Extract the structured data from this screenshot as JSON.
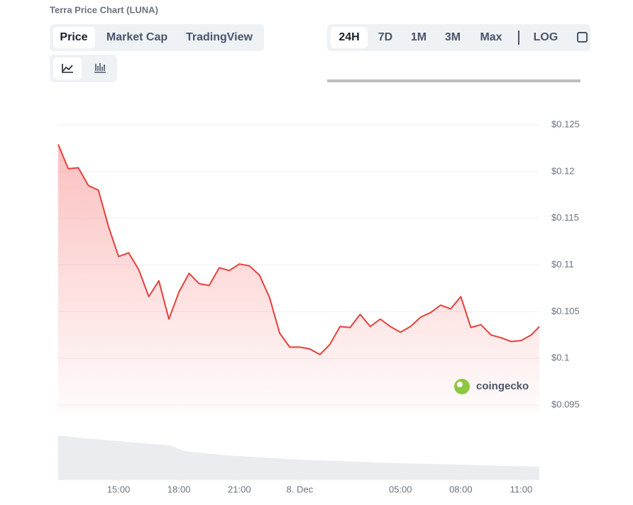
{
  "title": "Terra Price Chart (LUNA)",
  "tabs": [
    "Price",
    "Market Cap",
    "TradingView"
  ],
  "ranges": [
    "24H",
    "7D",
    "1M",
    "3M",
    "Max",
    "LOG"
  ],
  "watermark": "coingecko",
  "chart_data": {
    "type": "line",
    "color": "#e5403a",
    "grid": true,
    "x": [
      12.0,
      12.5,
      13.0,
      13.5,
      14.0,
      14.5,
      15.0,
      15.5,
      16.0,
      16.5,
      17.0,
      17.5,
      18.0,
      18.5,
      19.0,
      19.5,
      20.0,
      20.5,
      21.0,
      21.5,
      22.0,
      22.5,
      23.0,
      23.5,
      24.0,
      24.5,
      25.0,
      25.5,
      26.0,
      26.5,
      27.0,
      27.5,
      28.0,
      28.5,
      29.0,
      29.5,
      30.0,
      30.5,
      31.0,
      31.5,
      32.0,
      32.5,
      33.0,
      33.5,
      34.0,
      34.5,
      35.0,
      35.5,
      35.9
    ],
    "values": [
      0.1229,
      0.1203,
      0.1204,
      0.1185,
      0.118,
      0.1141,
      0.1109,
      0.1113,
      0.1095,
      0.1066,
      0.1083,
      0.1042,
      0.1071,
      0.1091,
      0.108,
      0.1078,
      0.1097,
      0.1094,
      0.1101,
      0.1099,
      0.1089,
      0.1065,
      0.1027,
      0.1012,
      0.1012,
      0.101,
      0.1004,
      0.1015,
      0.1034,
      0.1033,
      0.1047,
      0.1034,
      0.1042,
      0.1034,
      0.1028,
      0.1034,
      0.1044,
      0.1049,
      0.1057,
      0.1053,
      0.1066,
      0.1033,
      0.1036,
      0.1025,
      0.1022,
      0.1018,
      0.1019,
      0.1025,
      0.1034
    ],
    "xlim": [
      12.0,
      35.9
    ],
    "xticks": [
      {
        "value": 15,
        "label": "15:00"
      },
      {
        "value": 18,
        "label": "18:00"
      },
      {
        "value": 21,
        "label": "21:00"
      },
      {
        "value": 24,
        "label": "8. Dec"
      },
      {
        "value": 29,
        "label": "05:00"
      },
      {
        "value": 32,
        "label": "08:00"
      },
      {
        "value": 35,
        "label": "11:00"
      }
    ],
    "ylim": [
      0.094,
      0.126
    ],
    "yticks": [
      {
        "value": 0.095,
        "label": "$0.095"
      },
      {
        "value": 0.1,
        "label": "$0.1"
      },
      {
        "value": 0.105,
        "label": "$0.105"
      },
      {
        "value": 0.11,
        "label": "$0.11"
      },
      {
        "value": 0.115,
        "label": "$0.115"
      },
      {
        "value": 0.12,
        "label": "$0.12"
      },
      {
        "value": 0.125,
        "label": "$0.125"
      }
    ]
  }
}
